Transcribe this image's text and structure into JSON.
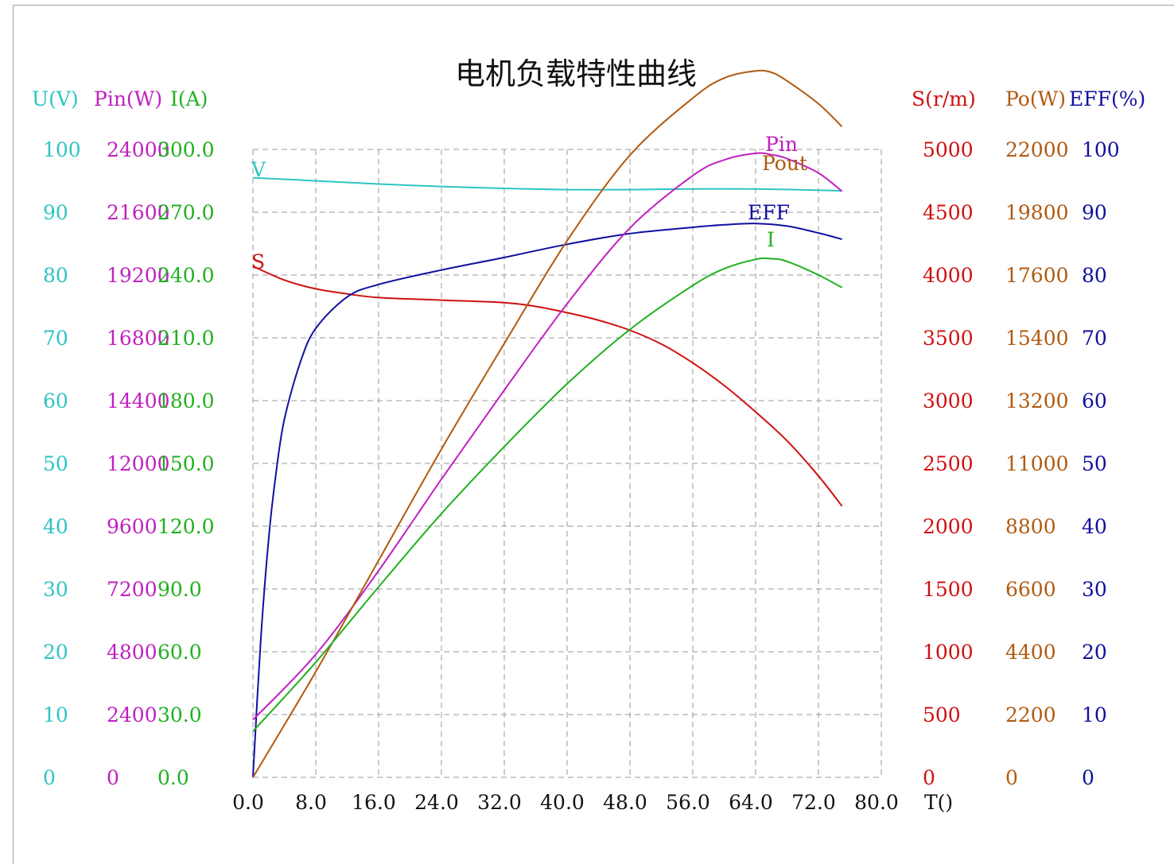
{
  "chart_data": {
    "type": "line",
    "title": "电机负载特性曲线",
    "xlabel": "T()",
    "xlim": [
      0,
      80
    ],
    "x_ticks": [
      "0.0",
      "8.0",
      "16.0",
      "24.0",
      "32.0",
      "40.0",
      "48.0",
      "56.0",
      "64.0",
      "72.0",
      "80.0"
    ],
    "grid": true,
    "colors": {
      "U": "#2ec4c4",
      "Pin": "#c020c0",
      "I": "#20b020",
      "S": "#d01010",
      "Po": "#b05a10",
      "EFF": "#1010a0"
    },
    "axes": [
      {
        "label": "U(V)",
        "side": "left",
        "color": "#2ec4c4",
        "ylim": [
          0,
          100
        ],
        "ticks": [
          "0",
          "10",
          "20",
          "30",
          "40",
          "50",
          "60",
          "70",
          "80",
          "90",
          "100"
        ]
      },
      {
        "label": "Pin(W)",
        "side": "left",
        "color": "#c020c0",
        "ylim": [
          0,
          24000
        ],
        "ticks": [
          "0",
          "2400",
          "4800",
          "7200",
          "9600",
          "12000",
          "14400",
          "16800",
          "19200",
          "21600",
          "24000"
        ]
      },
      {
        "label": "I(A)",
        "side": "left",
        "color": "#20b020",
        "ylim": [
          0,
          300
        ],
        "ticks": [
          "0.0",
          "30.0",
          "60.0",
          "90.0",
          "120.0",
          "150.0",
          "180.0",
          "210.0",
          "240.0",
          "270.0",
          "300.0"
        ]
      },
      {
        "label": "S(r/m)",
        "side": "right",
        "color": "#d01010",
        "ylim": [
          0,
          5000
        ],
        "ticks": [
          "0",
          "500",
          "1000",
          "1500",
          "2000",
          "2500",
          "3000",
          "3500",
          "4000",
          "4500",
          "5000"
        ]
      },
      {
        "label": "Po(W)",
        "side": "right",
        "color": "#b05a10",
        "ylim": [
          0,
          22000
        ],
        "ticks": [
          "0",
          "2200",
          "4400",
          "6600",
          "8800",
          "11000",
          "13200",
          "15400",
          "17600",
          "19800",
          "22000"
        ]
      },
      {
        "label": "EFF(%)",
        "side": "right",
        "color": "#1010a0",
        "ylim": [
          0,
          100
        ],
        "ticks": [
          "0",
          "10",
          "20",
          "30",
          "40",
          "50",
          "60",
          "70",
          "80",
          "90",
          "100"
        ]
      }
    ],
    "series": [
      {
        "name": "V",
        "axis": 0,
        "color": "#2ec4c4",
        "points": [
          [
            0,
            95.5
          ],
          [
            8,
            95
          ],
          [
            16,
            94.5
          ],
          [
            24,
            94.1
          ],
          [
            32,
            93.8
          ],
          [
            40,
            93.6
          ],
          [
            48,
            93.6
          ],
          [
            56,
            93.7
          ],
          [
            64,
            93.7
          ],
          [
            72,
            93.5
          ],
          [
            75,
            93.4
          ]
        ]
      },
      {
        "name": "S",
        "axis": 3,
        "color": "#d01010",
        "points": [
          [
            0,
            4070
          ],
          [
            4,
            3960
          ],
          [
            8,
            3890
          ],
          [
            12,
            3850
          ],
          [
            16,
            3820
          ],
          [
            24,
            3800
          ],
          [
            32,
            3780
          ],
          [
            36,
            3750
          ],
          [
            40,
            3700
          ],
          [
            44,
            3640
          ],
          [
            48,
            3560
          ],
          [
            52,
            3450
          ],
          [
            56,
            3300
          ],
          [
            60,
            3120
          ],
          [
            64,
            2910
          ],
          [
            68,
            2680
          ],
          [
            72,
            2400
          ],
          [
            75,
            2160
          ]
        ]
      },
      {
        "name": "EFF",
        "axis": 5,
        "color": "#1010a0",
        "points": [
          [
            0,
            0
          ],
          [
            1,
            22
          ],
          [
            2,
            38
          ],
          [
            3,
            49
          ],
          [
            4,
            57
          ],
          [
            6,
            66
          ],
          [
            8,
            71.5
          ],
          [
            12,
            76.5
          ],
          [
            16,
            78.5
          ],
          [
            24,
            80.8
          ],
          [
            32,
            82.8
          ],
          [
            40,
            84.9
          ],
          [
            48,
            86.6
          ],
          [
            56,
            87.6
          ],
          [
            60,
            88
          ],
          [
            64,
            88.2
          ],
          [
            68,
            87.8
          ],
          [
            72,
            86.7
          ],
          [
            75,
            85.7
          ]
        ]
      },
      {
        "name": "Pin",
        "axis": 1,
        "color": "#c020c0",
        "points": [
          [
            0,
            2200
          ],
          [
            8,
            4700
          ],
          [
            16,
            7900
          ],
          [
            24,
            11400
          ],
          [
            32,
            14800
          ],
          [
            40,
            18100
          ],
          [
            48,
            21000
          ],
          [
            56,
            23000
          ],
          [
            60,
            23600
          ],
          [
            64,
            23850
          ],
          [
            66,
            23800
          ],
          [
            68,
            23650
          ],
          [
            72,
            23100
          ],
          [
            75,
            22400
          ]
        ]
      },
      {
        "name": "Pout",
        "axis": 4,
        "color": "#b05a10",
        "points": [
          [
            0,
            0
          ],
          [
            8,
            3700
          ],
          [
            16,
            7600
          ],
          [
            24,
            11500
          ],
          [
            32,
            15200
          ],
          [
            40,
            18800
          ],
          [
            48,
            21800
          ],
          [
            56,
            23800
          ],
          [
            60,
            24500
          ],
          [
            64,
            24750
          ],
          [
            66,
            24700
          ],
          [
            68,
            24400
          ],
          [
            72,
            23600
          ],
          [
            75,
            22800
          ]
        ]
      },
      {
        "name": "I",
        "axis": 2,
        "color": "#20b020",
        "points": [
          [
            0,
            22
          ],
          [
            8,
            55
          ],
          [
            16,
            91
          ],
          [
            24,
            126
          ],
          [
            32,
            158
          ],
          [
            40,
            188
          ],
          [
            48,
            214
          ],
          [
            56,
            235
          ],
          [
            60,
            243
          ],
          [
            64,
            247.5
          ],
          [
            66,
            247.8
          ],
          [
            68,
            246.5
          ],
          [
            72,
            240
          ],
          [
            75,
            234
          ]
        ]
      }
    ]
  }
}
